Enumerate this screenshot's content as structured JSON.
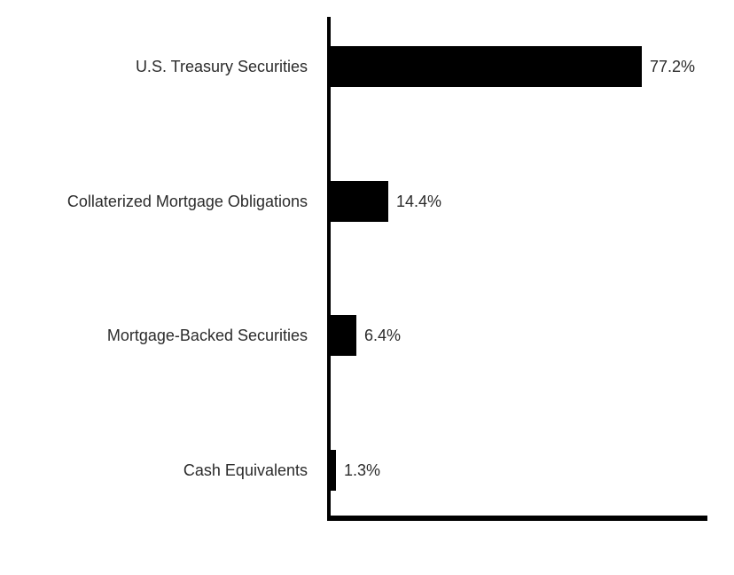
{
  "chart_data": {
    "type": "bar",
    "orientation": "horizontal",
    "title": "",
    "xlabel": "",
    "ylabel": "",
    "categories": [
      "U.S. Treasury Securities",
      "Collaterized Mortgage Obligations",
      "Mortgage-Backed Securities",
      "Cash Equivalents"
    ],
    "values": [
      77.2,
      14.4,
      6.4,
      1.3
    ],
    "value_labels": [
      "77.2%",
      "14.4%",
      "6.4%",
      "1.3%"
    ],
    "xlim": [
      0,
      94
    ],
    "grid": false,
    "legend": false,
    "colors": {
      "bar": "#000000",
      "axis": "#000000",
      "text": "#2b2b2b",
      "background": "#ffffff"
    }
  }
}
